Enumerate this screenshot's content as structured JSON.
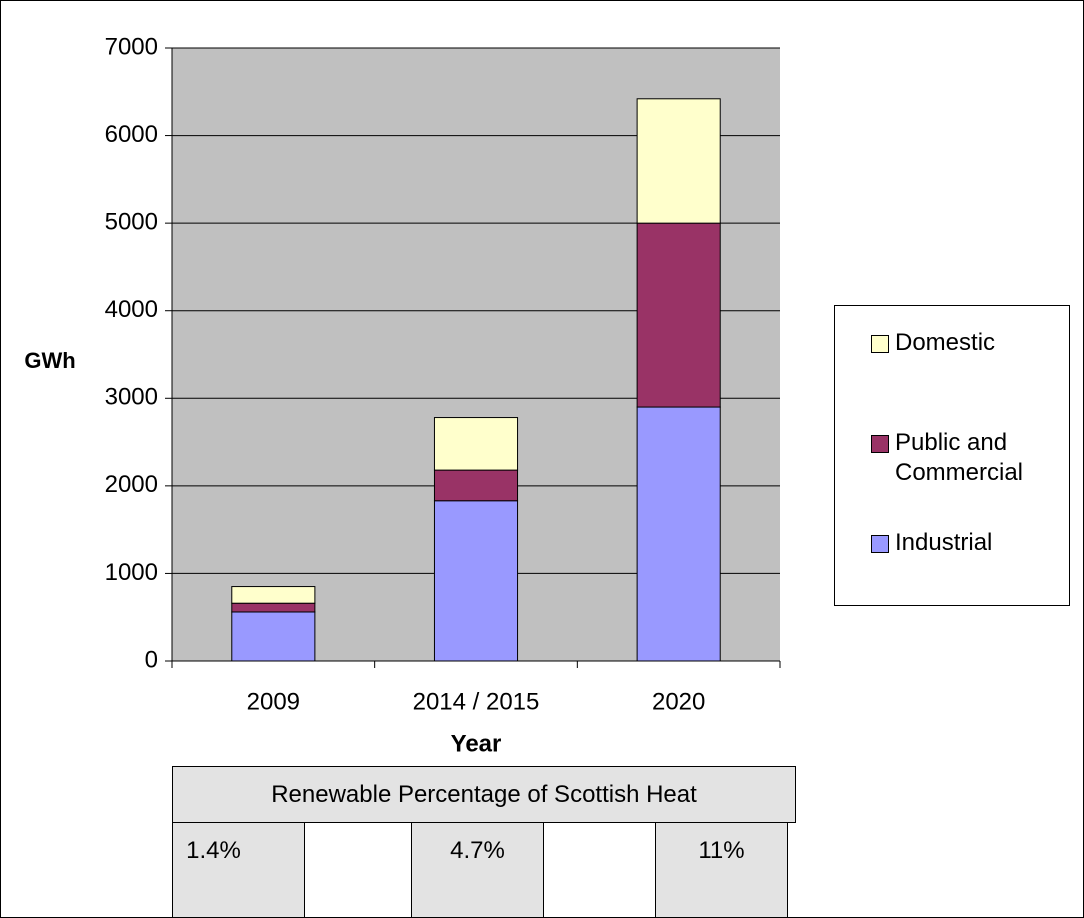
{
  "chart_data": {
    "type": "stacked_bar",
    "categories": [
      "2009",
      "2014 / 2015",
      "2020"
    ],
    "series": [
      {
        "name": "Industrial",
        "color": "#9999ff",
        "values": [
          560,
          1830,
          2900
        ]
      },
      {
        "name": "Public and Commercial",
        "color": "#993366",
        "values": [
          100,
          350,
          2100
        ]
      },
      {
        "name": "Domestic",
        "color": "#ffffcc",
        "values": [
          190,
          600,
          1420
        ]
      }
    ],
    "ylabel": "GWh",
    "xlabel": "Year",
    "ylim": [
      0,
      7000
    ],
    "yticks": [
      0,
      1000,
      2000,
      3000,
      4000,
      5000,
      6000,
      7000
    ],
    "grid": true
  },
  "table": {
    "title": "Renewable Percentage of Scottish Heat",
    "cells": [
      "1.4%",
      "4.7%",
      "11%"
    ]
  }
}
